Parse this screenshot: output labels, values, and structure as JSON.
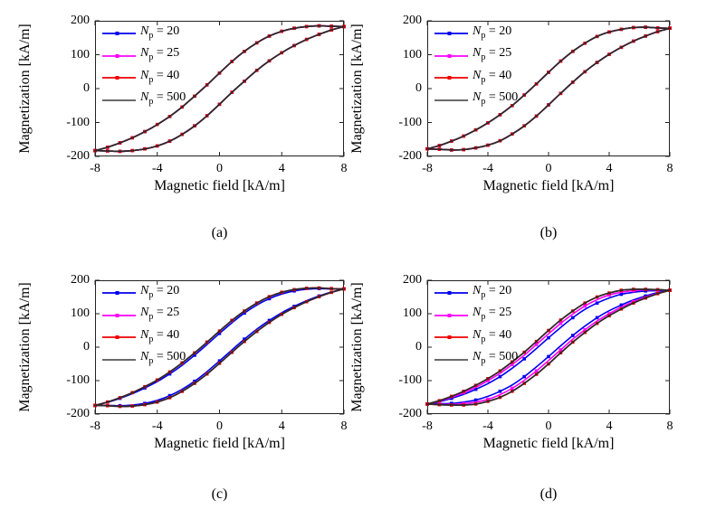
{
  "figure": {
    "bg": "#ffffff",
    "xlabel": "Magnetic field [kA/m]",
    "ylabel": "Magnetization [kA/m]",
    "x_ticks": [
      -8,
      -4,
      0,
      4,
      8
    ],
    "y_ticks": [
      200,
      100,
      0,
      -100,
      -200
    ],
    "x_tick_labels": [
      "-8",
      "-4",
      "0",
      "4",
      "8"
    ],
    "y_tick_labels": [
      "200",
      "100",
      "0",
      "-100",
      "-200"
    ],
    "xlim": [
      -8,
      8
    ],
    "ylim": [
      -200,
      200
    ],
    "axis_color": "#222222",
    "grid": false
  },
  "legend": {
    "position": "top-left-inside",
    "box": false,
    "items": [
      {
        "sym": "N",
        "sub": "p",
        "rest": " = 20",
        "color": "#0000ee",
        "marker": true
      },
      {
        "sym": "N",
        "sub": "p",
        "rest": " = 25",
        "color": "#ff00ff",
        "marker": true
      },
      {
        "sym": "N",
        "sub": "p",
        "rest": " = 40",
        "color": "#ee0000",
        "marker": true
      },
      {
        "sym": "N",
        "sub": "p",
        "rest": " = 500",
        "color": "#555555",
        "marker": false
      }
    ]
  },
  "chart_data": {
    "type": "line",
    "title": "",
    "xlabel": "Magnetic field [kA/m]",
    "ylabel": "Magnetization [kA/m]",
    "xlim": [
      -8,
      8
    ],
    "ylim": [
      -200,
      200
    ],
    "h": [
      -8,
      -7.2,
      -6.4,
      -5.6,
      -4.8,
      -4,
      -3.2,
      -2.4,
      -1.6,
      -0.8,
      0,
      0.8,
      1.6,
      2.4,
      3.2,
      4,
      4.8,
      5.6,
      6.4,
      7.2,
      8
    ],
    "series_meta": [
      {
        "key": "np20",
        "name": "Np = 20",
        "color": "#0000ee",
        "width": 1.6,
        "marker_step": 2,
        "marker_phase": 0
      },
      {
        "key": "np25",
        "name": "Np = 25",
        "color": "#ff00ff",
        "width": 1.6,
        "marker_step": 2,
        "marker_phase": 1
      },
      {
        "key": "np40",
        "name": "Np = 40",
        "color": "#ee0000",
        "width": 1.6,
        "marker_step": 1,
        "marker_phase": 0
      },
      {
        "key": "np500",
        "name": "Np = 500",
        "color": "#2a2a2a",
        "width": 1.7,
        "marker_step": 0,
        "marker_phase": 0
      }
    ],
    "plots": [
      {
        "caption": "(a)",
        "loops": {
          "base": {
            "upper": [
              -183,
              -173,
              -160,
              -145,
              -127,
              -106,
              -82,
              -54,
              -22,
              11,
              46,
              80,
              110,
              135,
              155,
              169,
              178,
              183,
              185,
              184,
              183
            ],
            "lower": [
              -183,
              -184,
              -185,
              -183,
              -178,
              -169,
              -155,
              -135,
              -110,
              -80,
              -46,
              -11,
              22,
              54,
              82,
              106,
              127,
              145,
              160,
              173,
              183
            ]
          }
        },
        "series_loops": {
          "np20": "base",
          "np25": "base",
          "np40": "base",
          "np500": "base"
        }
      },
      {
        "caption": "(b)",
        "loops": {
          "base": {
            "upper": [
              -178,
              -168,
              -155,
              -140,
              -122,
              -101,
              -77,
              -50,
              -19,
              14,
              48,
              81,
              110,
              134,
              154,
              167,
              175,
              180,
              181,
              179,
              178
            ],
            "lower": [
              -178,
              -179,
              -181,
              -180,
              -175,
              -167,
              -154,
              -134,
              -110,
              -81,
              -48,
              -14,
              19,
              50,
              77,
              101,
              122,
              140,
              155,
              168,
              178
            ]
          }
        },
        "series_loops": {
          "np20": "base",
          "np25": "base",
          "np40": "base",
          "np500": "base"
        }
      },
      {
        "caption": "(c)",
        "loops": {
          "base": {
            "upper": [
              -174,
              -164,
              -151,
              -136,
              -118,
              -98,
              -74,
              -47,
              -17,
              15,
              48,
              80,
              108,
              132,
              151,
              164,
              172,
              176,
              177,
              175,
              174
            ],
            "lower": [
              -174,
              -175,
              -177,
              -176,
              -172,
              -164,
              -151,
              -132,
              -108,
              -80,
              -48,
              -15,
              17,
              47,
              74,
              98,
              118,
              136,
              151,
              164,
              174
            ]
          },
          "np20loop": {
            "upper": [
              -174,
              -165,
              -153,
              -139,
              -122,
              -103,
              -80,
              -54,
              -24,
              8,
              41,
              73,
              102,
              126,
              145,
              159,
              168,
              173,
              175,
              174,
              174
            ],
            "lower": [
              -174,
              -174,
              -175,
              -173,
              -168,
              -159,
              -145,
              -126,
              -102,
              -73,
              -41,
              -8,
              24,
              54,
              80,
              103,
              122,
              139,
              153,
              165,
              174
            ]
          }
        },
        "series_loops": {
          "np20": "np20loop",
          "np25": "base",
          "np40": "base",
          "np500": "base"
        }
      },
      {
        "caption": "(d)",
        "loops": {
          "base": {
            "upper": [
              -170,
              -160,
              -147,
              -132,
              -114,
              -94,
              -71,
              -44,
              -15,
              17,
              50,
              81,
              108,
              132,
              150,
              162,
              170,
              173,
              173,
              172,
              170
            ],
            "lower": [
              -170,
              -172,
              -173,
              -173,
              -170,
              -162,
              -150,
              -132,
              -108,
              -81,
              -50,
              -17,
              15,
              44,
              71,
              94,
              114,
              132,
              147,
              160,
              170
            ]
          },
          "np25loop": {
            "upper": [
              -170,
              -161,
              -150,
              -136,
              -120,
              -100,
              -78,
              -52,
              -24,
              8,
              40,
              71,
              99,
              123,
              142,
              156,
              164,
              169,
              171,
              171,
              170
            ],
            "lower": [
              -170,
              -171,
              -171,
              -169,
              -164,
              -156,
              -142,
              -123,
              -99,
              -71,
              -40,
              -8,
              24,
              52,
              78,
              100,
              120,
              136,
              150,
              161,
              170
            ]
          },
          "np20loop": {
            "upper": [
              -170,
              -163,
              -153,
              -141,
              -126,
              -109,
              -88,
              -63,
              -35,
              -4,
              28,
              59,
              88,
              113,
              132,
              147,
              158,
              164,
              168,
              169,
              170
            ],
            "lower": [
              -170,
              -169,
              -168,
              -164,
              -158,
              -147,
              -132,
              -113,
              -88,
              -59,
              -28,
              4,
              35,
              63,
              88,
              109,
              126,
              141,
              153,
              163,
              170
            ]
          }
        },
        "series_loops": {
          "np20": "np20loop",
          "np25": "np25loop",
          "np40": "base",
          "np500": "base"
        }
      }
    ]
  }
}
